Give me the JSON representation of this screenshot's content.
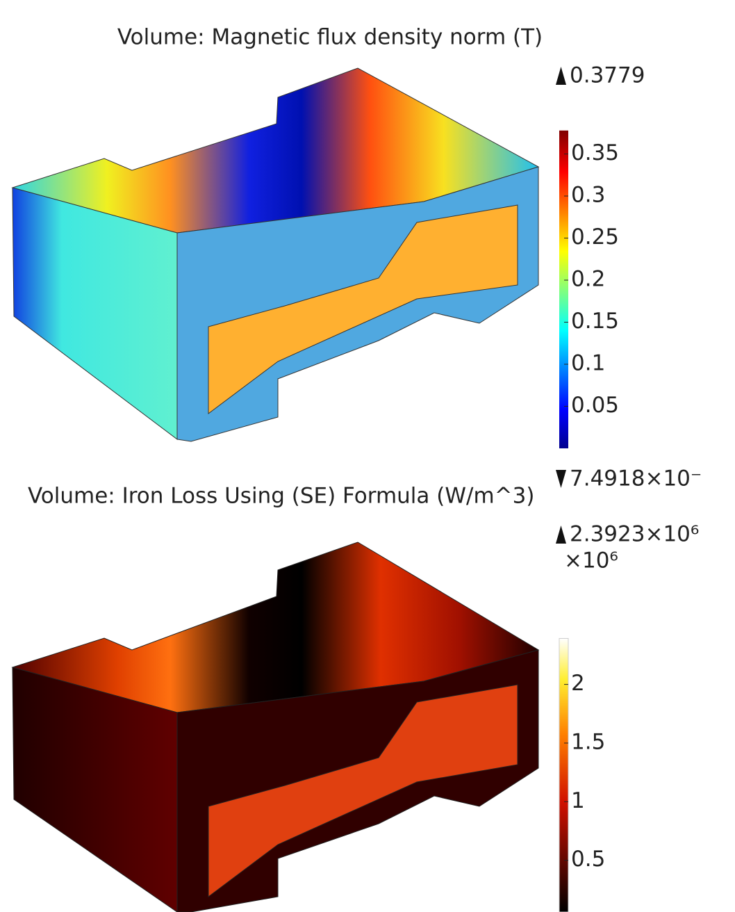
{
  "plots": [
    {
      "title": "Volume: Magnetic flux density norm (T)",
      "colorbar": {
        "lim": [
          0,
          0.3779
        ],
        "ticks": [
          0.05,
          0.1,
          0.15,
          0.2,
          0.25,
          0.3,
          0.35
        ],
        "min_label": "7.4918×10⁻"
      }
    },
    {
      "title": "Volume: Iron Loss Using (SE) Formula (W/m^3)",
      "colorbar": {
        "lim": [
          0,
          2.3923
        ],
        "ticks": [
          0.5,
          1,
          1.5,
          2
        ],
        "max_label": "2.3923×10⁶",
        "multiplier": "×10⁶"
      }
    }
  ]
}
